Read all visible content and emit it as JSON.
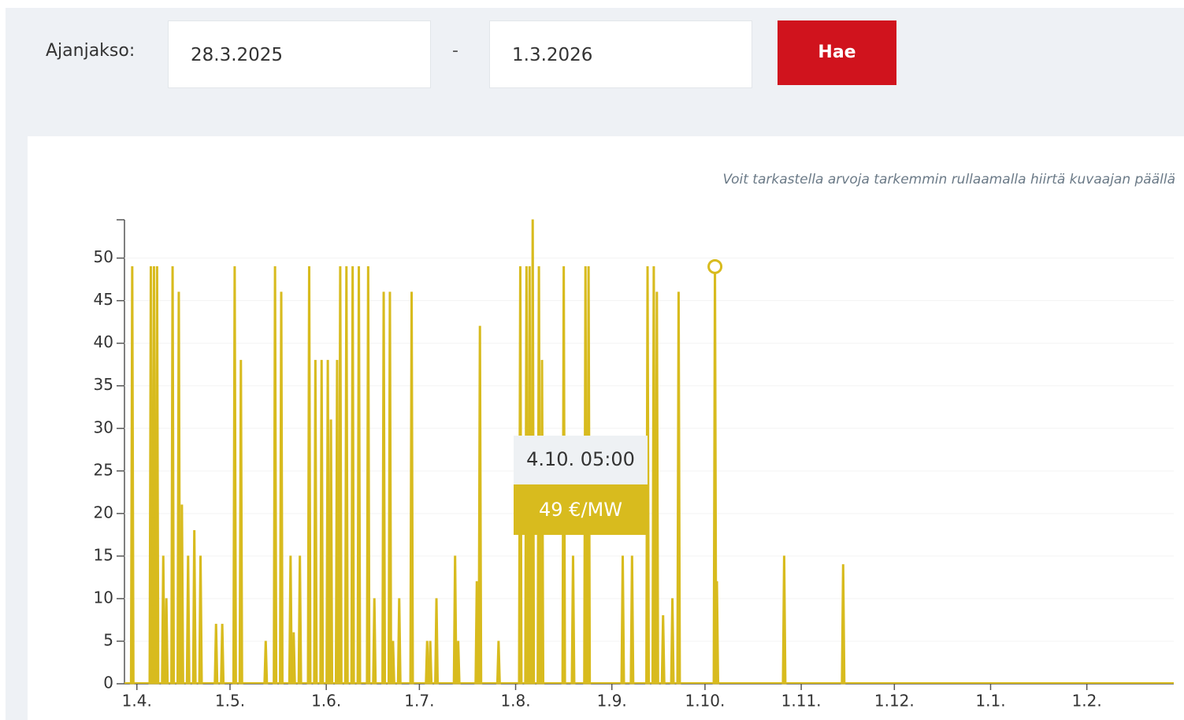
{
  "form": {
    "label": "Ajanjakso:",
    "start": "28.3.2025",
    "separator": "-",
    "end": "1.3.2026",
    "button": "Hae"
  },
  "chart_data": {
    "type": "area",
    "annotation": "Voit tarkastella arvoja tarkemmin rullaamalla hiirtä kuvaajan päällä",
    "color": "#d8bb1e",
    "x": [
      "30.3. 12:00",
      "5.4. 12:00",
      "6.4. 12:00",
      "7.4. 12:00",
      "9.4. 12:00",
      "10.4. 12:00",
      "12.4. 12:00",
      "14.4. 12:00",
      "15.4. 12:00",
      "17.4. 12:00",
      "19.4. 12:00",
      "21.4. 12:00",
      "26.4. 12:00",
      "28.4. 12:00",
      "2.5. 12:00",
      "4.5. 12:00",
      "12.5. 12:00",
      "15.5. 12:00",
      "17.5. 12:00",
      "20.5. 12:00",
      "21.5. 12:00",
      "23.5. 12:00",
      "26.5. 12:00",
      "28.5. 12:00",
      "30.5. 12:00",
      "1.6. 12:00",
      "2.6. 12:00",
      "4.6. 12:00",
      "5.6. 12:00",
      "7.6. 12:00",
      "9.6. 12:00",
      "11.6. 12:00",
      "14.6. 12:00",
      "16.6. 12:00",
      "19.6. 12:00",
      "21.6. 12:00",
      "22.6. 12:00",
      "24.6. 12:00",
      "28.6. 12:00",
      "3.7. 12:00",
      "4.7. 12:00",
      "6.7. 12:00",
      "12.7. 12:00",
      "13.7. 12:00",
      "19.7. 12:00",
      "20.7. 12:00",
      "26.7. 12:00",
      "2.8. 12:00",
      "4.8. 12:00",
      "5.8. 12:00",
      "6.8. 12:00",
      "8.8. 12:00",
      "9.8. 12:00",
      "16.8. 12:00",
      "19.8. 12:00",
      "23.8. 12:00",
      "24.8. 12:00",
      "4.9. 12:00",
      "7.9. 12:00",
      "12.9. 12:00",
      "14.9. 12:00",
      "15.9. 12:00",
      "17.9. 12:00",
      "20.9. 12:00",
      "22.9. 12:00",
      "4.10. 05:00",
      "4.10. 20:00",
      "26.10. 12:00",
      "14.11. 12:00"
    ],
    "values": [
      49,
      49,
      49,
      49,
      15,
      10,
      49,
      46,
      21,
      15,
      18,
      15,
      7,
      7,
      49,
      38,
      5,
      49,
      46,
      15,
      6,
      15,
      49,
      38,
      38,
      38,
      31,
      38,
      49,
      49,
      49,
      49,
      49,
      10,
      46,
      46,
      5,
      10,
      46,
      5,
      5,
      10,
      15,
      5,
      12,
      42,
      5,
      49,
      49,
      49,
      54.5,
      49,
      38,
      49,
      15,
      49,
      49,
      15,
      15,
      49,
      49,
      46,
      8,
      10,
      46,
      49,
      12,
      15,
      14
    ],
    "xlim": [
      "28.3. 00:00",
      "1.3. 00:00"
    ],
    "xticks": [
      "1.4.",
      "1.5.",
      "1.6.",
      "1.7.",
      "1.8.",
      "1.9.",
      "1.10.",
      "1.11.",
      "1.12.",
      "1.1.",
      "1.2."
    ],
    "ylim": [
      0,
      54.5
    ],
    "yticks": [
      0,
      5,
      10,
      15,
      20,
      25,
      30,
      35,
      40,
      45,
      50
    ],
    "grid": true,
    "tooltip": {
      "x": "4.10. 05:00",
      "label": "49 €/MW"
    }
  }
}
